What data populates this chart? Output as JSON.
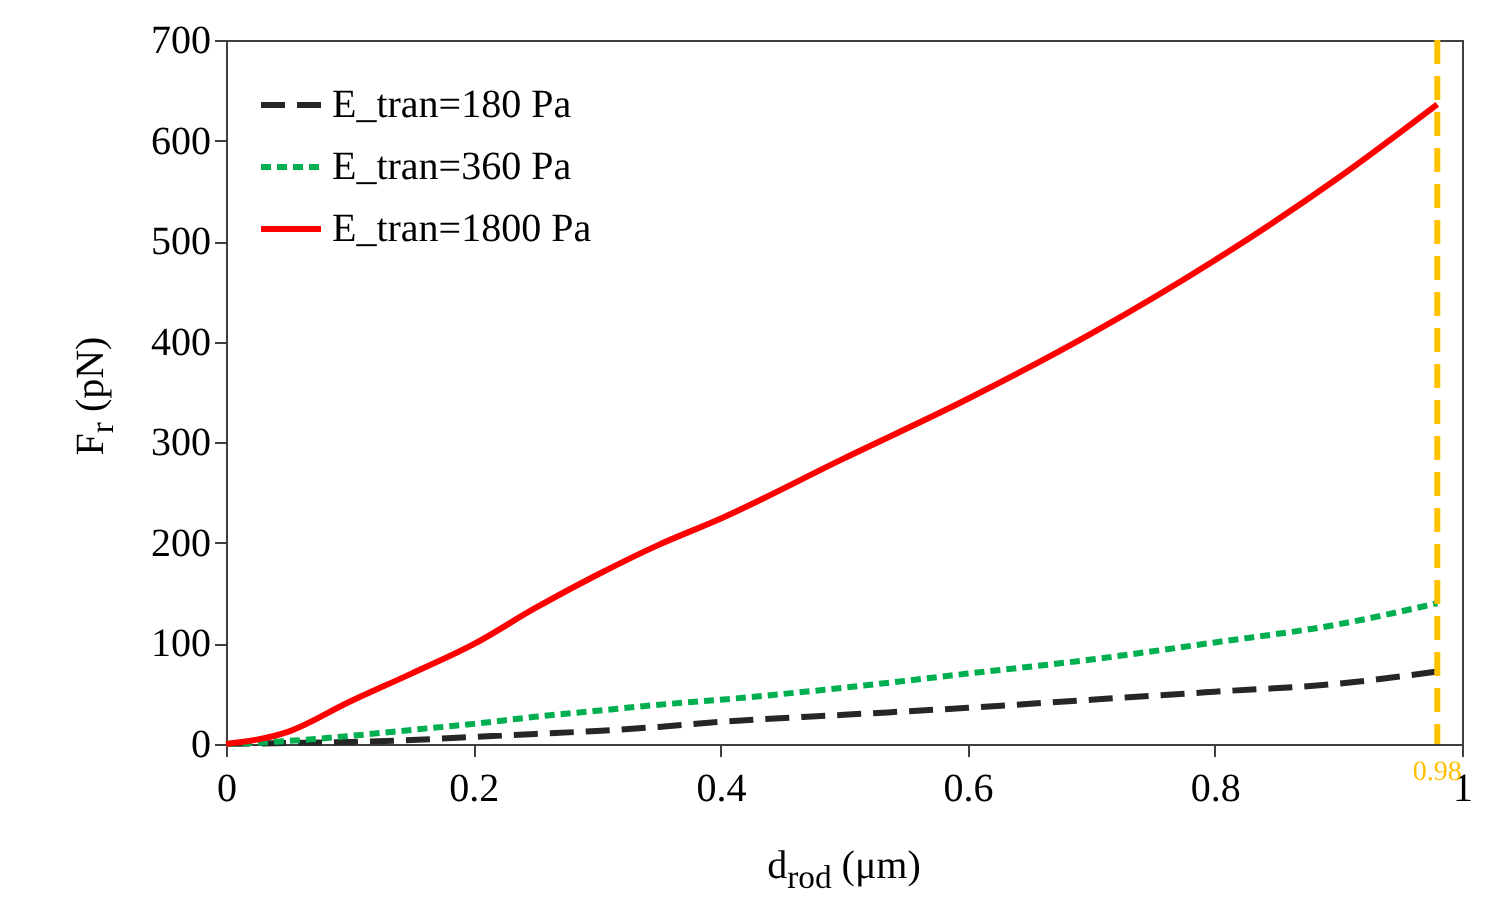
{
  "chart_data": {
    "type": "line",
    "xlabel": "d$_{rod}$ (μm)",
    "ylabel": "F$_{r}$ (pN)",
    "x": [
      0,
      0.05,
      0.1,
      0.15,
      0.2,
      0.25,
      0.3,
      0.35,
      0.4,
      0.5,
      0.6,
      0.7,
      0.8,
      0.9,
      0.98
    ],
    "series": [
      {
        "name": "E_tran=180 Pa",
        "color": "#262626",
        "line_style": "dashed",
        "values": [
          0,
          1,
          2,
          4,
          7,
          10,
          13,
          17,
          22,
          29,
          36,
          44,
          52,
          60,
          72
        ]
      },
      {
        "name": "E_tran=360 Pa",
        "color": "#00b050",
        "line_style": "dotted",
        "values": [
          0,
          3,
          8,
          14,
          20,
          27,
          33,
          39,
          44,
          56,
          70,
          84,
          101,
          119,
          140
        ]
      },
      {
        "name": "E_tran=1800 Pa",
        "color": "#ff0000",
        "line_style": "solid",
        "values": [
          0,
          12,
          42,
          70,
          99,
          135,
          168,
          198,
          224,
          284,
          343,
          408,
          481,
          563,
          636
        ]
      }
    ],
    "xlim": [
      0,
      1
    ],
    "xticks": [
      0,
      0.2,
      0.4,
      0.6,
      0.8,
      1
    ],
    "ylim": [
      0,
      700
    ],
    "yticks": [
      0,
      100,
      200,
      300,
      400,
      500,
      600,
      700
    ],
    "ref_lines": [
      {
        "axis": "x",
        "value": 0.98,
        "label": "0.98",
        "color": "#ffc000",
        "line_style": "dashed"
      }
    ],
    "legend": "top left",
    "grid": false
  }
}
